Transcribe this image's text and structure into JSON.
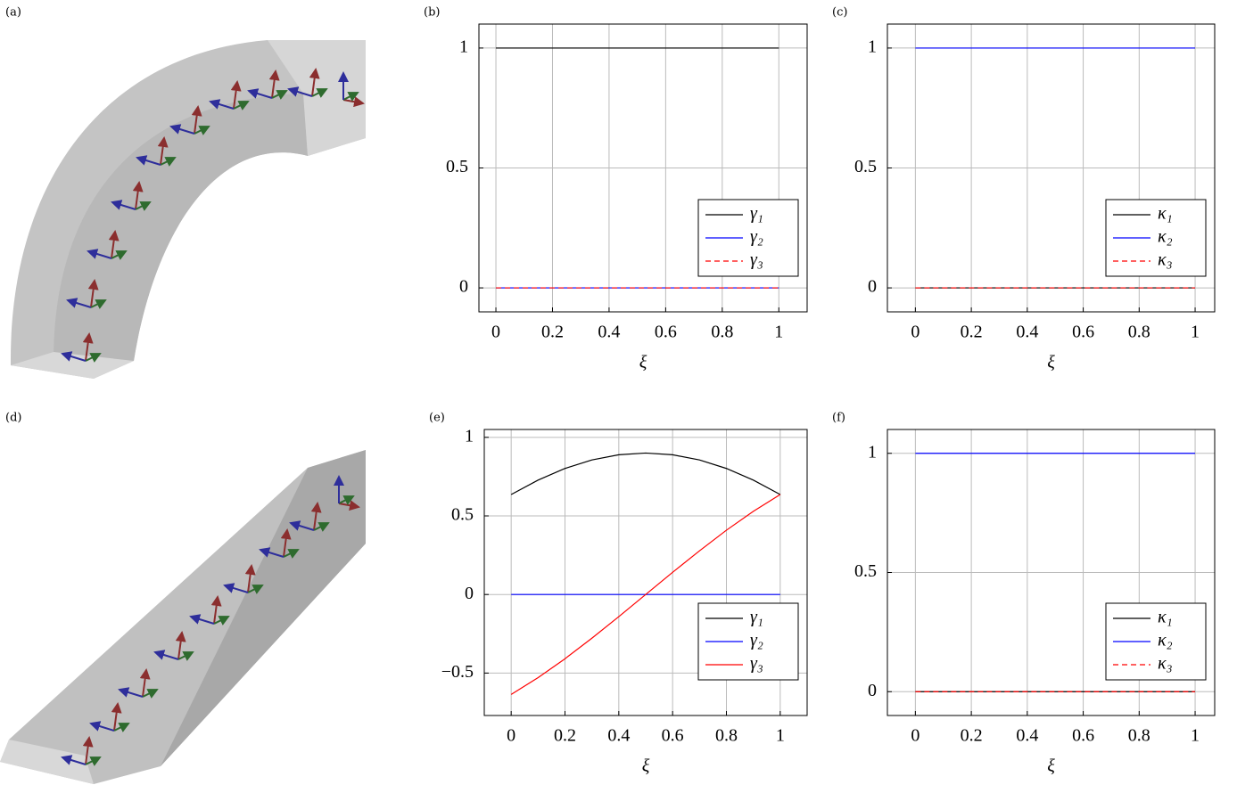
{
  "panel_labels": [
    "(a)",
    "(d)"
  ],
  "chart_data": [
    {
      "type": "line",
      "label": "(b)",
      "xlabel": "ξ",
      "grid": true,
      "legend": "lower right",
      "xlim": [
        -0.06,
        1.1
      ],
      "ylim": [
        -0.1,
        1.1
      ],
      "xticks": [
        0,
        0.2,
        0.4,
        0.6,
        0.8,
        1
      ],
      "yticks": [
        0,
        0.5,
        1
      ],
      "x": [
        0,
        1
      ],
      "series": [
        {
          "name": "γ₁",
          "color": "#000000",
          "dash": false,
          "values": [
            1,
            1
          ]
        },
        {
          "name": "γ₂",
          "color": "#0000ff",
          "dash": false,
          "values": [
            0,
            0
          ]
        },
        {
          "name": "γ₃",
          "color": "#ff0000",
          "dash": true,
          "values": [
            0,
            0
          ]
        }
      ]
    },
    {
      "type": "line",
      "label": "(c)",
      "xlabel": "ξ",
      "grid": true,
      "legend": "lower right",
      "xlim": [
        -0.1,
        1.07
      ],
      "ylim": [
        -0.1,
        1.1
      ],
      "xticks": [
        0,
        0.2,
        0.4,
        0.6,
        0.8,
        1
      ],
      "yticks": [
        0,
        0.5,
        1
      ],
      "x": [
        0,
        1
      ],
      "series": [
        {
          "name": "κ₁",
          "color": "#000000",
          "dash": false,
          "values": [
            0,
            0
          ]
        },
        {
          "name": "κ₂",
          "color": "#0000ff",
          "dash": false,
          "values": [
            1,
            1
          ]
        },
        {
          "name": "κ₃",
          "color": "#ff0000",
          "dash": true,
          "values": [
            0,
            0
          ]
        }
      ]
    },
    {
      "type": "line",
      "label": "(e)",
      "xlabel": "ξ",
      "grid": true,
      "legend": "lower right",
      "xlim": [
        -0.1,
        1.1
      ],
      "ylim": [
        -0.77,
        1.05
      ],
      "xticks": [
        0,
        0.2,
        0.4,
        0.6,
        0.8,
        1
      ],
      "yticks": [
        {
          "value": -0.5,
          "label": "−0.5"
        },
        0,
        0.5,
        1
      ],
      "x": [
        0,
        0.1,
        0.2,
        0.3,
        0.4,
        0.5,
        0.6,
        0.7,
        0.8,
        0.9,
        1
      ],
      "series": [
        {
          "name": "γ₁",
          "color": "#000000",
          "dash": false,
          "values": [
            0.636,
            0.728,
            0.802,
            0.856,
            0.889,
            0.9,
            0.889,
            0.856,
            0.802,
            0.728,
            0.636
          ]
        },
        {
          "name": "γ₂",
          "color": "#0000ff",
          "dash": false,
          "values": [
            0,
            0,
            0,
            0,
            0,
            0,
            0,
            0,
            0,
            0,
            0
          ]
        },
        {
          "name": "γ₃",
          "color": "#ff0000",
          "dash": false,
          "values": [
            -0.636,
            -0.529,
            -0.409,
            -0.278,
            -0.141,
            0,
            0.141,
            0.278,
            0.409,
            0.529,
            0.636
          ]
        }
      ]
    },
    {
      "type": "line",
      "label": "(f)",
      "xlabel": "ξ",
      "grid": true,
      "legend": "lower right",
      "xlim": [
        -0.1,
        1.07
      ],
      "ylim": [
        -0.1,
        1.1
      ],
      "xticks": [
        0,
        0.2,
        0.4,
        0.6,
        0.8,
        1
      ],
      "yticks": [
        0,
        0.5,
        1
      ],
      "x": [
        0,
        1
      ],
      "series": [
        {
          "name": "κ₁",
          "color": "#000000",
          "dash": false,
          "values": [
            0,
            0
          ]
        },
        {
          "name": "κ₂",
          "color": "#0000ff",
          "dash": false,
          "values": [
            1,
            1
          ]
        },
        {
          "name": "κ₃",
          "color": "#ff0000",
          "dash": true,
          "values": [
            0,
            0
          ]
        }
      ]
    }
  ]
}
